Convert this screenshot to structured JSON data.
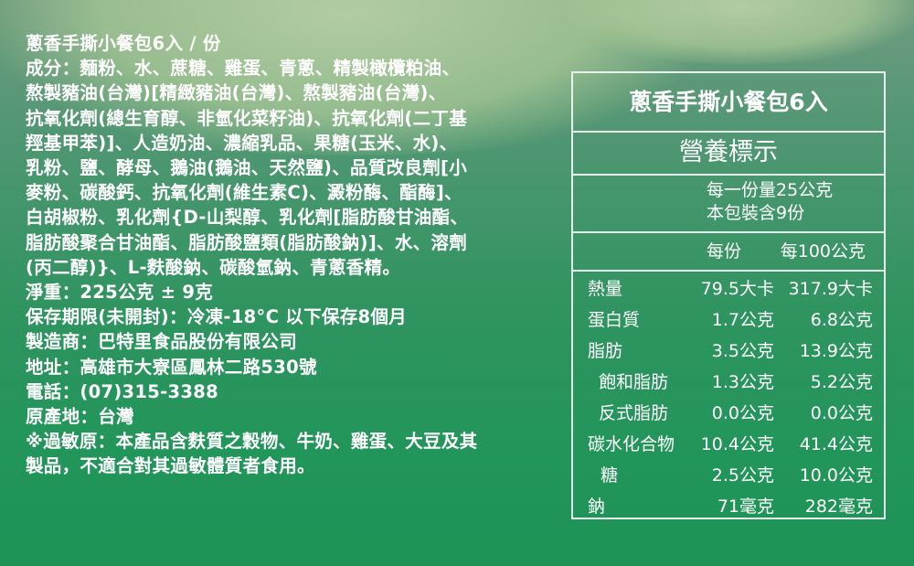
{
  "ingredients": {
    "lines": [
      "蔥香手撕小餐包6入 / 份",
      "成分：麵粉、水、蔗糖、雞蛋、青蔥、精製橄欖粕油、",
      "熬製豬油(台灣)[精緻豬油(台灣)、熬製豬油(台灣)、",
      "抗氧化劑(總生育醇、非氫化菜籽油)、抗氧化劑(二丁基",
      "羥基甲苯)]、人造奶油、濃縮乳品、果糖(玉米、水)、",
      "乳粉、鹽、酵母、鵝油(鵝油、天然鹽)、品質改良劑[小",
      "麥粉、碳酸鈣、抗氧化劑(維生素C)、澱粉酶、酯酶]、",
      "白胡椒粉、乳化劑{D-山梨醇、乳化劑[脂肪酸甘油酯、",
      "脂肪酸聚合甘油酯、脂肪酸鹽類(脂肪酸鈉)]、水、溶劑",
      "(丙二醇)}、L-麩酸鈉、碳酸氫鈉、青蔥香精。",
      "淨重：225公克 ± 9克",
      "保存期限(未開封)：冷凍-18°C 以下保存8個月",
      "製造商：巴特里食品股份有限公司",
      "地址：高雄市大寮區鳳林二路530號",
      "電話：(07)315-3388",
      "原產地：台灣",
      "※過敏原：本產品含麩質之穀物、牛奶、雞蛋、大豆及其",
      "製品，不適合對其過敏體質者食用。"
    ]
  },
  "nutrition": {
    "product": "蔥香手撕小餐包6入",
    "heading": "營養標示",
    "serving_size": "每一份量25公克",
    "servings": "本包裝含9份",
    "col_per_serving": "每份",
    "col_per_100g": "每100公克",
    "rows": [
      {
        "name": "熱量",
        "per_serving": "79.5大卡",
        "per_100g": "317.9大卡"
      },
      {
        "name": "蛋白質",
        "per_serving": "1.7公克",
        "per_100g": "6.8公克"
      },
      {
        "name": "脂肪",
        "per_serving": "3.5公克",
        "per_100g": "13.9公克"
      },
      {
        "name": "飽和脂肪",
        "per_serving": "1.3公克",
        "per_100g": "5.2公克"
      },
      {
        "name": "反式脂肪",
        "per_serving": "0.0公克",
        "per_100g": "0.0公克"
      },
      {
        "name": "碳水化合物",
        "per_serving": "10.4公克",
        "per_100g": "41.4公克"
      },
      {
        "name": "糖",
        "per_serving": "2.5公克",
        "per_100g": "10.0公克"
      },
      {
        "name": "鈉",
        "per_serving": "71毫克",
        "per_100g": "282毫克"
      }
    ]
  }
}
